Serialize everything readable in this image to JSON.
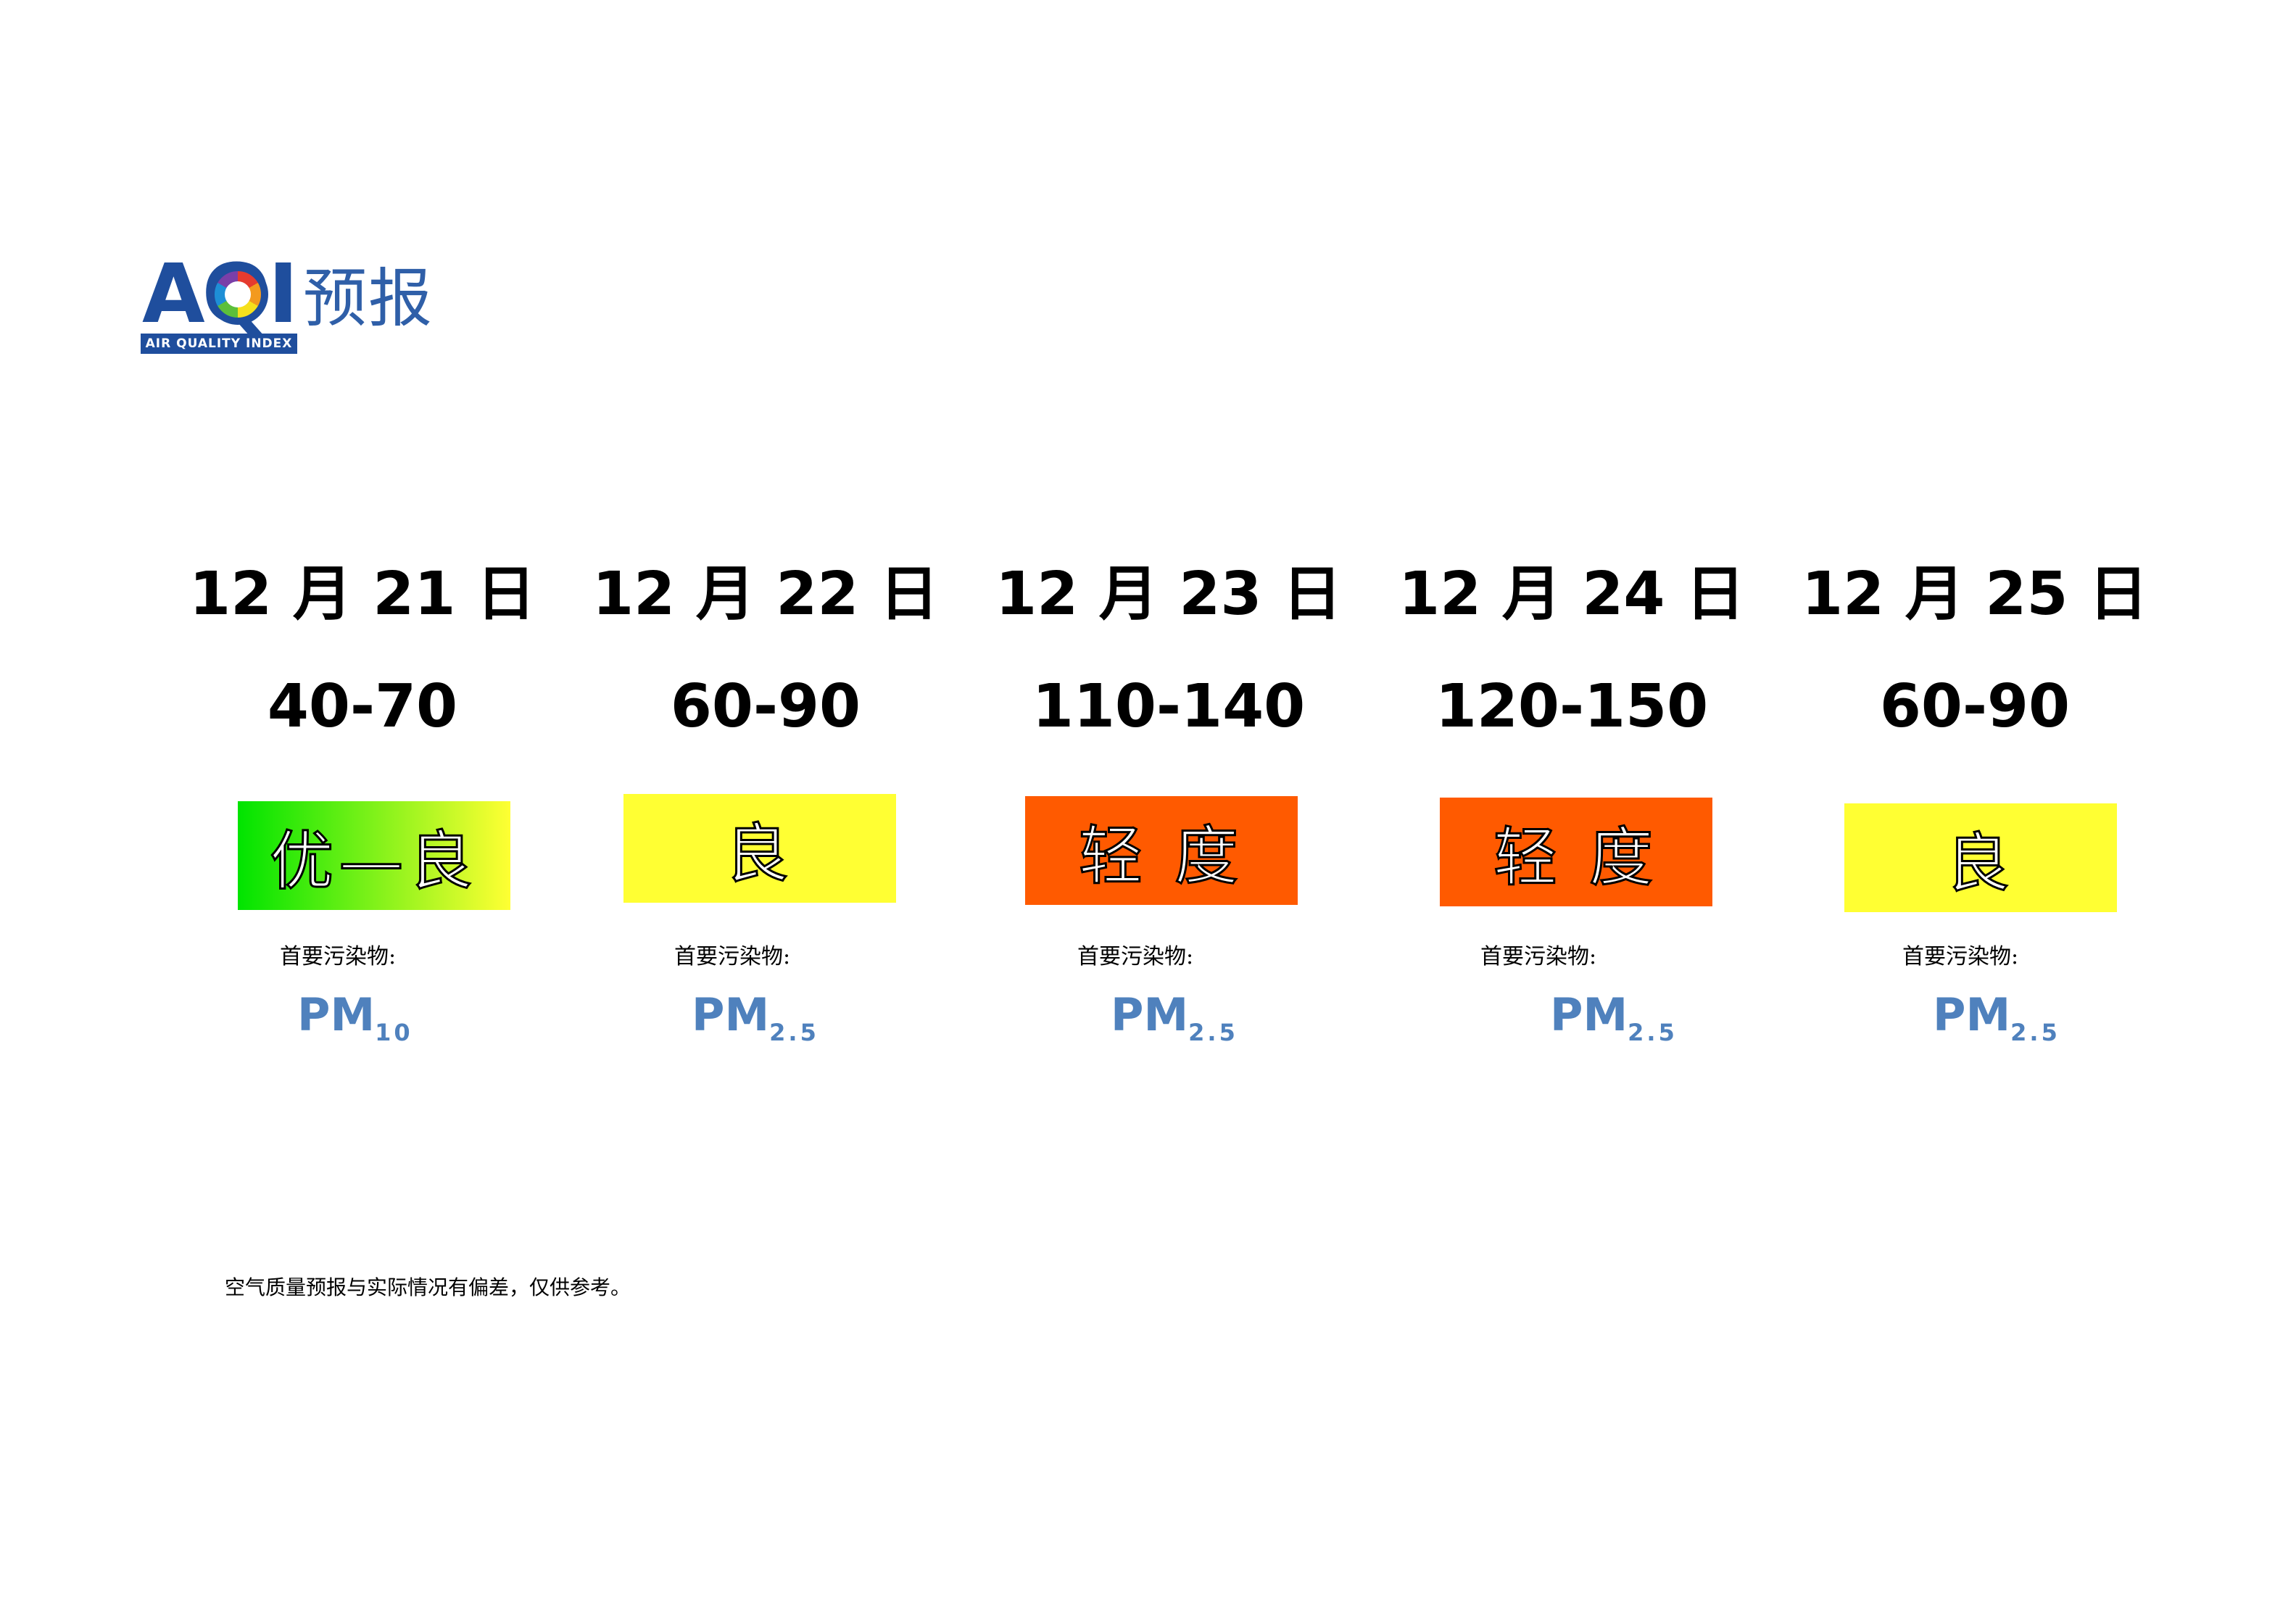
{
  "logo": {
    "letters": "AQI",
    "subtitle": "AIR QUALITY INDEX",
    "word": "预报"
  },
  "forecast": [
    {
      "date": "12 月 21 日",
      "range": "40-70",
      "level": "优—良",
      "color_start": "#00e400",
      "color_end": "#ffff33",
      "pollutant_label": "首要污染物:",
      "pollutant": "PM",
      "pollutant_sub": "10"
    },
    {
      "date": "12 月 22 日",
      "range": "60-90",
      "level": "良",
      "color_start": "#ffff33",
      "color_end": "#ffff33",
      "pollutant_label": "首要污染物:",
      "pollutant": "PM",
      "pollutant_sub": "2.5"
    },
    {
      "date": "12 月 23 日",
      "range": "110-140",
      "level": "轻 度",
      "color_start": "#ff5a00",
      "color_end": "#ff5a00",
      "pollutant_label": "首要污染物:",
      "pollutant": "PM",
      "pollutant_sub": "2.5"
    },
    {
      "date": "12 月 24 日",
      "range": "120-150",
      "level": "轻 度",
      "color_start": "#ff5a00",
      "color_end": "#ff5a00",
      "pollutant_label": "首要污染物:",
      "pollutant": "PM",
      "pollutant_sub": "2.5"
    },
    {
      "date": "12 月 25 日",
      "range": "60-90",
      "level": "良",
      "color_start": "#ffff33",
      "color_end": "#ffff33",
      "pollutant_label": "首要污染物:",
      "pollutant": "PM",
      "pollutant_sub": "2.5"
    }
  ],
  "disclaimer": "空气质量预报与实际情况有偏差，仅供参考。"
}
